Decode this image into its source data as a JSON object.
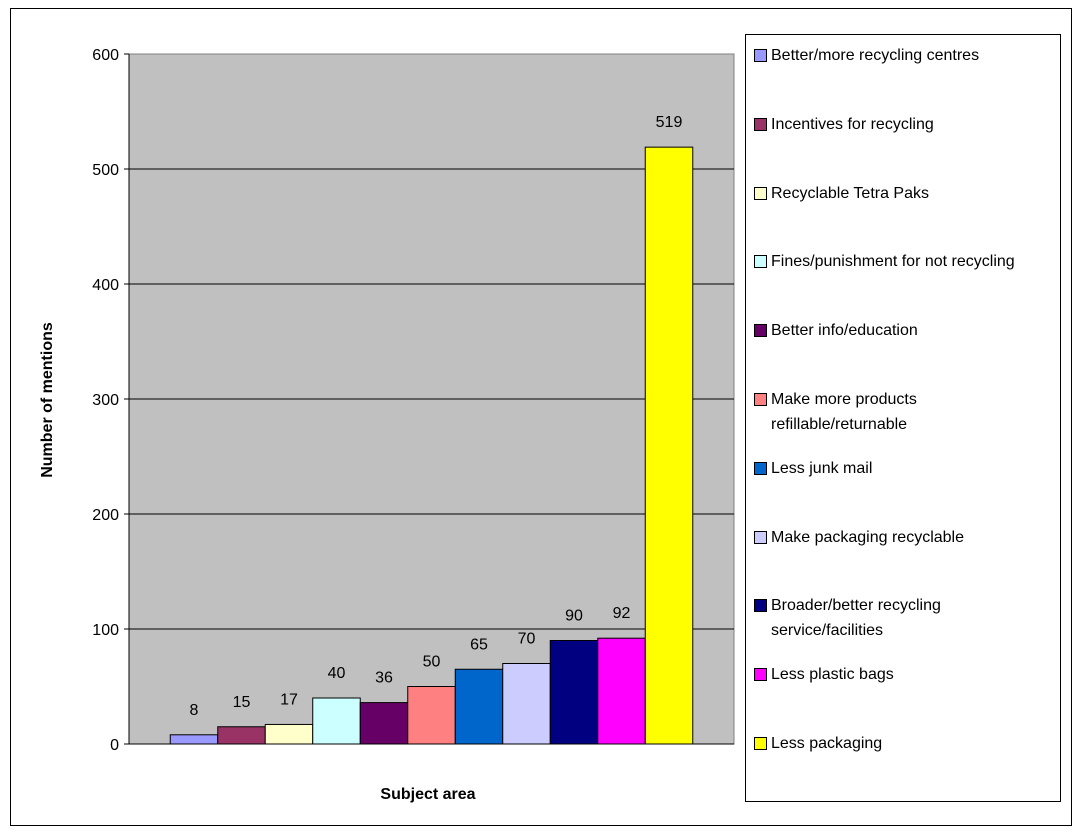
{
  "chart_data": {
    "type": "bar",
    "title": "",
    "xlabel": "Subject area",
    "ylabel": "Number of mentions",
    "ylim": [
      0,
      600
    ],
    "yticks": [
      0,
      100,
      200,
      300,
      400,
      500,
      600
    ],
    "grid": true,
    "legend_position": "right",
    "plot_background": "#c0c0c0",
    "series": [
      {
        "name": "Better/more recycling centres",
        "value": 8,
        "color": "#9999ff"
      },
      {
        "name": "Incentives for recycling",
        "value": 15,
        "color": "#993366"
      },
      {
        "name": "Recyclable Tetra Paks",
        "value": 17,
        "color": "#ffffcc"
      },
      {
        "name": "Fines/punishment for not recycling",
        "value": 40,
        "color": "#ccffff"
      },
      {
        "name": "Better info/education",
        "value": 36,
        "color": "#660066"
      },
      {
        "name": "Make more products\nrefillable/returnable",
        "value": 50,
        "color": "#ff8080"
      },
      {
        "name": "Less junk mail",
        "value": 65,
        "color": "#0066cc"
      },
      {
        "name": "Make packaging recyclable",
        "value": 70,
        "color": "#ccccff"
      },
      {
        "name": "Broader/better recycling\nservice/facilities",
        "value": 90,
        "color": "#000080"
      },
      {
        "name": "Less plastic bags",
        "value": 92,
        "color": "#ff00ff"
      },
      {
        "name": "Less packaging",
        "value": 519,
        "color": "#ffff00"
      }
    ]
  }
}
